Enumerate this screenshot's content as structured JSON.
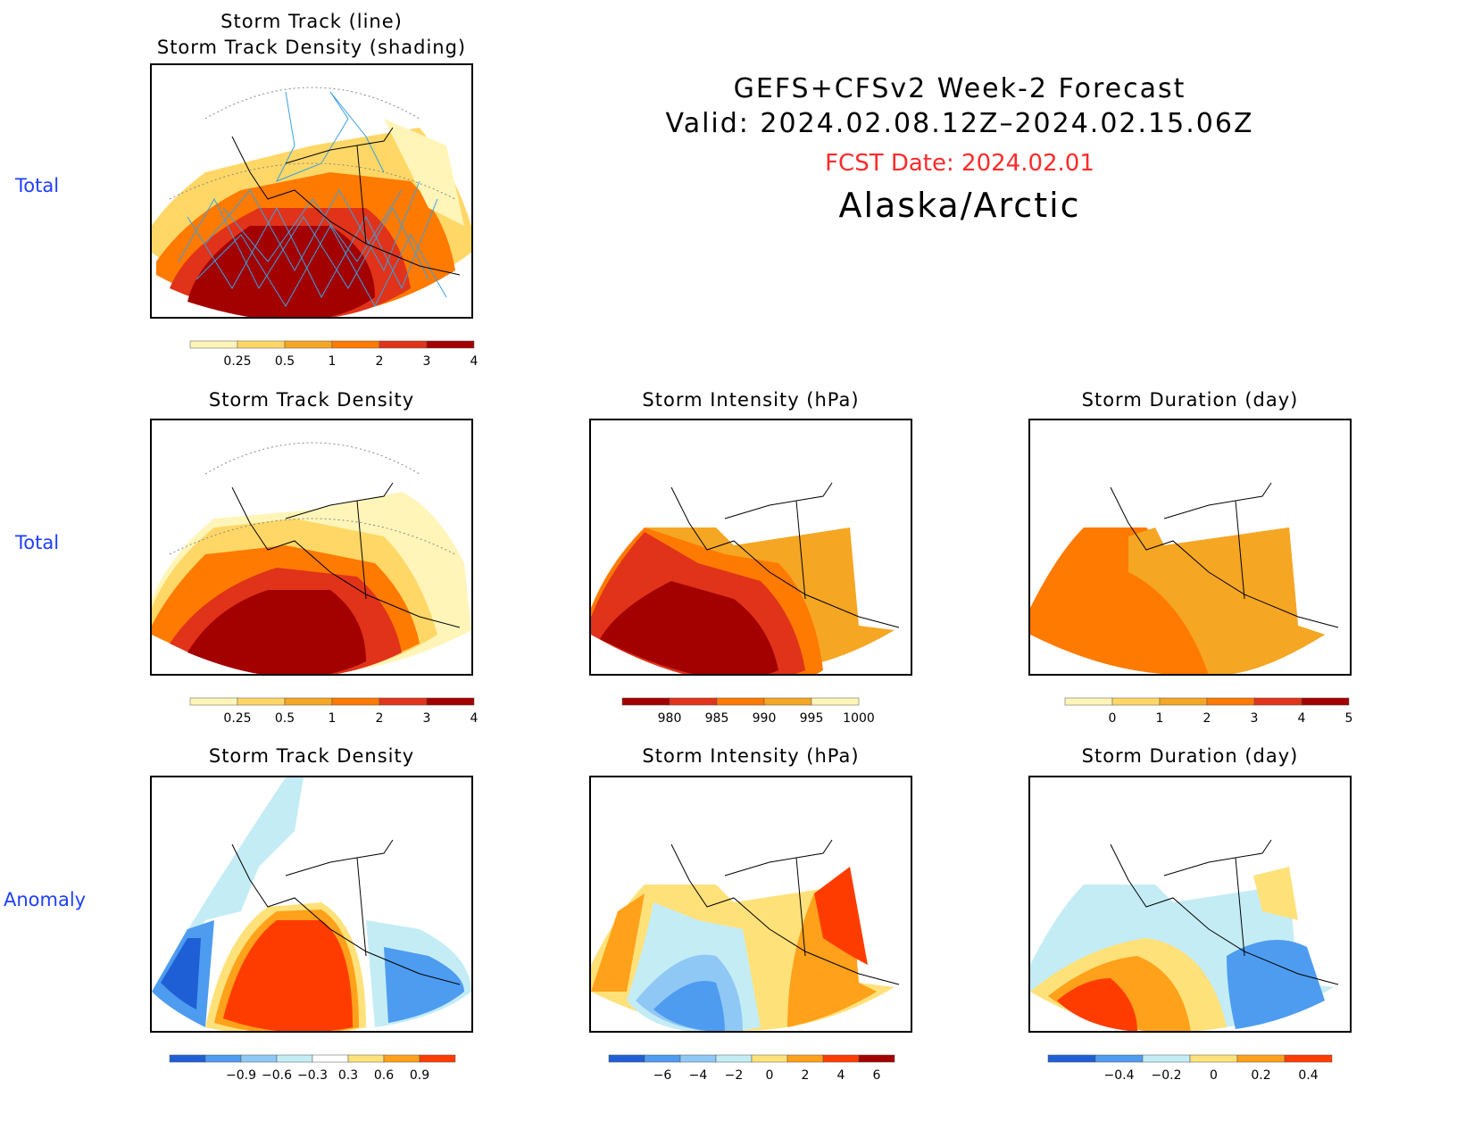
{
  "header": {
    "title_line1": "GEFS+CFSv2 Week-2 Forecast",
    "title_line2": "Valid: 2024.02.08.12Z–2024.02.15.06Z",
    "fcst_date": "FCST Date: 2024.02.01",
    "region": "Alaska/Arctic",
    "fcst_color": "#ff2a2a"
  },
  "row_labels": {
    "row1": "Total",
    "row2": "Total",
    "row3": "Anomaly"
  },
  "panels": {
    "top": {
      "title_line1": "Storm Track (line)",
      "title_line2": "Storm Track Density (shading)"
    },
    "density_total": {
      "title": "Storm Track Density"
    },
    "intensity_total": {
      "title": "Storm Intensity (hPa)"
    },
    "duration_total": {
      "title": "Storm Duration (day)"
    },
    "density_anom": {
      "title": "Storm Track Density"
    },
    "intensity_anom": {
      "title": "Storm Intensity (hPa)"
    },
    "duration_anom": {
      "title": "Storm Duration (day)"
    }
  },
  "colorbars": {
    "density_total": {
      "labels": [
        "0.25",
        "0.5",
        "1",
        "2",
        "3",
        "4"
      ],
      "colors": [
        "#fff5b8",
        "#ffd766",
        "#f5a623",
        "#ff7a00",
        "#e0331a",
        "#a30000"
      ]
    },
    "intensity_total": {
      "labels": [
        "980",
        "985",
        "990",
        "995",
        "1000"
      ],
      "colors": [
        "#a30000",
        "#e0331a",
        "#ff7a00",
        "#f5a623",
        "#fff5b8"
      ]
    },
    "duration_total": {
      "labels": [
        "0",
        "1",
        "2",
        "3",
        "4",
        "5"
      ],
      "colors": [
        "#fff5b8",
        "#ffd766",
        "#f5a623",
        "#ff7a00",
        "#e0331a",
        "#a30000"
      ]
    },
    "density_anom": {
      "labels": [
        "−0.9",
        "−0.6",
        "−0.3",
        "0.3",
        "0.6",
        "0.9"
      ],
      "colors": [
        "#1f5fd6",
        "#4e9cf0",
        "#8fc8f5",
        "#c4ecf5",
        "#ffffff",
        "#ffe17a",
        "#ffa11a",
        "#ff3c00"
      ]
    },
    "intensity_anom": {
      "labels": [
        "−6",
        "−4",
        "−2",
        "0",
        "2",
        "4",
        "6"
      ],
      "colors": [
        "#1f5fd6",
        "#4e9cf0",
        "#8fc8f5",
        "#c4ecf5",
        "#ffe17a",
        "#ffa11a",
        "#ff3c00",
        "#a30000"
      ]
    },
    "duration_anom": {
      "labels": [
        "−0.4",
        "−0.2",
        "0",
        "0.2",
        "0.4"
      ],
      "colors": [
        "#1f5fd6",
        "#4e9cf0",
        "#c4ecf5",
        "#ffe17a",
        "#ffa11a",
        "#ff3c00"
      ]
    }
  }
}
